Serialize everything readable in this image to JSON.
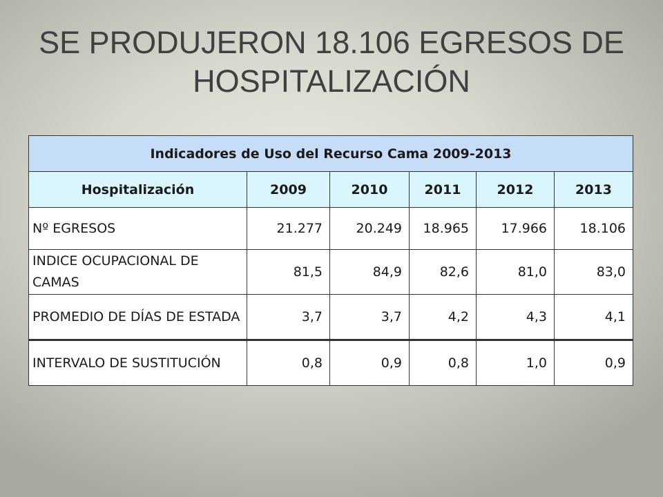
{
  "slide": {
    "title_line1": "SE PRODUJERON 18.106 EGRESOS DE",
    "title_line2": "HOSPITALIZACIÓN"
  },
  "table": {
    "caption": "Indicadores de Uso del Recurso Cama 2009-2013",
    "header_label": "Hospitalización",
    "years": [
      "2009",
      "2010",
      "2011",
      "2012",
      "2013"
    ],
    "rows": [
      {
        "label": "Nº EGRESOS",
        "values": [
          "21.277",
          "20.249",
          "18.965",
          "17.966",
          "18.106"
        ]
      },
      {
        "label": "INDICE OCUPACIONAL DE CAMAS",
        "values": [
          "81,5",
          "84,9",
          "82,6",
          "81,0",
          "83,0"
        ]
      },
      {
        "label": "PROMEDIO DE DÍAS DE ESTADA",
        "values": [
          "3,7",
          "3,7",
          "4,2",
          "4,3",
          "4,1"
        ]
      },
      {
        "label": "INTERVALO DE SUSTITUCIÓN",
        "values": [
          "0,8",
          "0,9",
          "0,8",
          "1,0",
          "0,9"
        ]
      }
    ]
  },
  "colors": {
    "caption_background": "#c6ddf7",
    "header_background": "#d8f6fb",
    "title_text": "#404040"
  }
}
